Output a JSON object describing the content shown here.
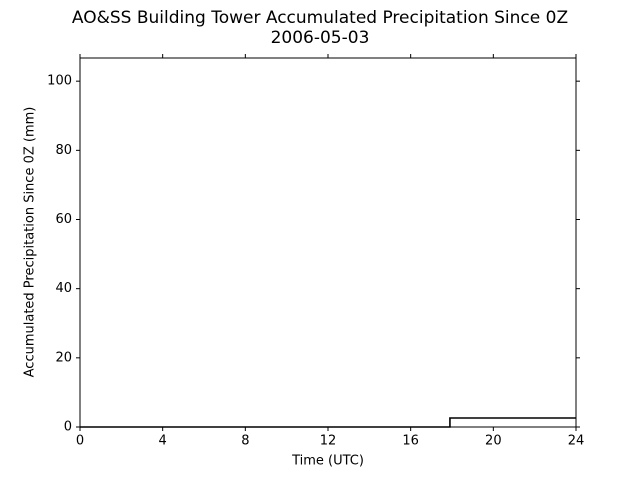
{
  "chart_data": {
    "type": "line",
    "title": "AO&SS Building Tower Accumulated Precipitation Since 0Z",
    "subtitle": "2006-05-03",
    "x_label": "Time (UTC)",
    "y_label": "Accumulated Precipitation Since 0Z (mm)",
    "x": [
      0,
      17.9,
      17.9,
      24
    ],
    "series": [
      {
        "name": "Accumulated Precipitation",
        "color": "#000000",
        "values": [
          0,
          0,
          2.6,
          2.6
        ]
      }
    ],
    "xlim": [
      0,
      24
    ],
    "xticks": [
      0,
      4,
      8,
      12,
      16,
      20,
      24
    ],
    "ylim": [
      0,
      106.7
    ],
    "yticks": [
      0,
      20,
      40,
      60,
      80,
      100
    ],
    "grid": false
  }
}
